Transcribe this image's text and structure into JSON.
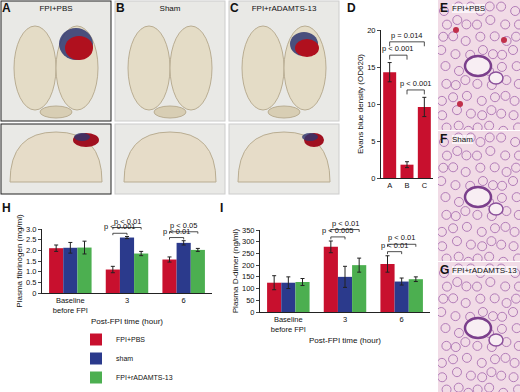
{
  "brain_images": [
    {
      "panel": "A",
      "caption": "FPI+PBS"
    },
    {
      "panel": "B",
      "caption": "Sham"
    },
    {
      "panel": "C",
      "caption": "FPI+rADAMTS-13"
    }
  ],
  "lung_sections": [
    {
      "panel": "E",
      "caption": "FPI+PBS"
    },
    {
      "panel": "F",
      "caption": "Sham"
    },
    {
      "panel": "G",
      "caption": "FPI+rADAMTS-13"
    }
  ],
  "chart_data": [
    {
      "panel": "D",
      "type": "bar",
      "categories": [
        "A",
        "B",
        "C"
      ],
      "values": [
        14.3,
        1.8,
        9.6
      ],
      "errors": [
        1.3,
        0.4,
        1.3
      ],
      "color": "#c8102e",
      "ylabel": "Evans blue density (OD620)",
      "ylim": [
        0,
        20
      ],
      "yticks": [
        0,
        5,
        10,
        15,
        20
      ],
      "comparisons": [
        {
          "pair": [
            "B",
            "C"
          ],
          "label": "p < 0.001"
        },
        {
          "pair": [
            "A",
            "B"
          ],
          "label": "p < 0.001"
        },
        {
          "pair": [
            "A",
            "C"
          ],
          "label": "p = 0.014"
        }
      ]
    },
    {
      "panel": "H",
      "type": "bar",
      "categories": [
        "Baseline before FPI",
        "3",
        "6"
      ],
      "xlabel": "Post-FPI time (hour)",
      "ylabel": "Plasma fibrinogen (mg/ml)",
      "ylim": [
        0,
        3
      ],
      "yticks": [
        0,
        0.5,
        {
          "value": 1,
          "label": "1.0"
        },
        1.5,
        {
          "value": 2,
          "label": "2.0"
        },
        2.5,
        {
          "value": 3,
          "label": "3.0"
        }
      ],
      "legend": "bottom",
      "series": [
        {
          "name": "FPI+PBS",
          "color": "#c8102e",
          "values": [
            2.1,
            1.1,
            1.57
          ],
          "errors": [
            0.15,
            0.15,
            0.12
          ]
        },
        {
          "name": "sham",
          "color": "#2b3a8c",
          "values": [
            2.12,
            2.6,
            2.35
          ],
          "errors": [
            0.25,
            0.05,
            0.1
          ]
        },
        {
          "name": "FPI+rADAMTS-13",
          "color": "#4caf50",
          "values": [
            2.13,
            1.85,
            2.02
          ],
          "errors": [
            0.3,
            0.1,
            0.07
          ]
        }
      ],
      "comparisons": [
        {
          "category": "3",
          "pair": [
            "FPI+PBS",
            "sham"
          ],
          "label": "p < 0.001"
        },
        {
          "category": "3",
          "pair": [
            "FPI+PBS",
            "FPI+rADAMTS-13"
          ],
          "label": "p < 0.01"
        },
        {
          "category": "6",
          "pair": [
            "FPI+PBS",
            "sham"
          ],
          "label": "p < 0.01"
        },
        {
          "category": "6",
          "pair": [
            "FPI+PBS",
            "FPI+rADAMTS-13"
          ],
          "label": "p < 0.05"
        }
      ]
    },
    {
      "panel": "I",
      "type": "bar",
      "categories": [
        "Baseline before FPI",
        "3",
        "6"
      ],
      "xlabel": "Post-FPI time (hour)",
      "ylabel": "Plasma D-dimer (ng/ml)",
      "ylim": [
        0,
        350
      ],
      "yticks": [
        0,
        50,
        100,
        150,
        200,
        250,
        300,
        350
      ],
      "series": [
        {
          "name": "FPI+PBS",
          "color": "#c8102e",
          "values": [
            125,
            278,
            205
          ],
          "errors": [
            30,
            25,
            35
          ]
        },
        {
          "name": "sham",
          "color": "#2b3a8c",
          "values": [
            125,
            150,
            130
          ],
          "errors": [
            25,
            45,
            15
          ]
        },
        {
          "name": "FPI+rADAMTS-13",
          "color": "#4caf50",
          "values": [
            128,
            200,
            140
          ],
          "errors": [
            15,
            30,
            10
          ]
        }
      ],
      "comparisons": [
        {
          "category": "3",
          "pair": [
            "FPI+PBS",
            "sham"
          ],
          "label": "p < 0.005"
        },
        {
          "category": "3",
          "pair": [
            "FPI+PBS",
            "FPI+rADAMTS-13"
          ],
          "label": "p < 0.01"
        },
        {
          "category": "6",
          "pair": [
            "FPI+PBS",
            "sham"
          ],
          "label": "p < 0.01"
        },
        {
          "category": "6",
          "pair": [
            "FPI+PBS",
            "FPI+rADAMTS-13"
          ],
          "label": "p < 0.01"
        }
      ]
    }
  ]
}
